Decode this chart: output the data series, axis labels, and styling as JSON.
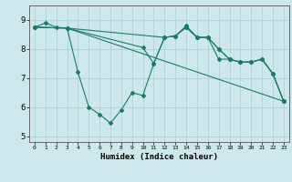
{
  "xlabel": "Humidex (Indice chaleur)",
  "xlim": [
    -0.5,
    23.5
  ],
  "ylim": [
    4.8,
    9.5
  ],
  "yticks": [
    5,
    6,
    7,
    8,
    9
  ],
  "xticks": [
    0,
    1,
    2,
    3,
    4,
    5,
    6,
    7,
    8,
    9,
    10,
    11,
    12,
    13,
    14,
    15,
    16,
    17,
    18,
    19,
    20,
    21,
    22,
    23
  ],
  "bg_color": "#cce8ea",
  "grid_color": "#aacccc",
  "line_color": "#1a7a6e",
  "line1_x": [
    0,
    1,
    2,
    3,
    4,
    5,
    6,
    7,
    8,
    9,
    10,
    11,
    12,
    13,
    14,
    15,
    16,
    17,
    18,
    19,
    20,
    21,
    22,
    23
  ],
  "line1_y": [
    8.75,
    8.9,
    8.75,
    8.72,
    7.2,
    6.0,
    5.75,
    5.45,
    5.9,
    6.5,
    6.4,
    7.5,
    8.4,
    8.45,
    8.8,
    8.4,
    8.4,
    7.65,
    7.65,
    7.55,
    7.55,
    7.65,
    7.15,
    6.2
  ],
  "line2_x": [
    0,
    3,
    23
  ],
  "line2_y": [
    8.75,
    8.72,
    6.2
  ],
  "line3_x": [
    0,
    3,
    12,
    13,
    14,
    15,
    16,
    17,
    18,
    19,
    20,
    21,
    22,
    23
  ],
  "line3_y": [
    8.75,
    8.72,
    8.4,
    8.45,
    8.75,
    8.4,
    8.4,
    8.0,
    7.65,
    7.55,
    7.55,
    7.65,
    7.15,
    6.2
  ],
  "line4_x": [
    0,
    3,
    10,
    11,
    12,
    13,
    14,
    15,
    16,
    17,
    18,
    19,
    20,
    21,
    22,
    23
  ],
  "line4_y": [
    8.75,
    8.72,
    8.05,
    7.5,
    8.4,
    8.45,
    8.75,
    8.4,
    8.4,
    8.0,
    7.65,
    7.55,
    7.55,
    7.65,
    7.15,
    6.2
  ]
}
